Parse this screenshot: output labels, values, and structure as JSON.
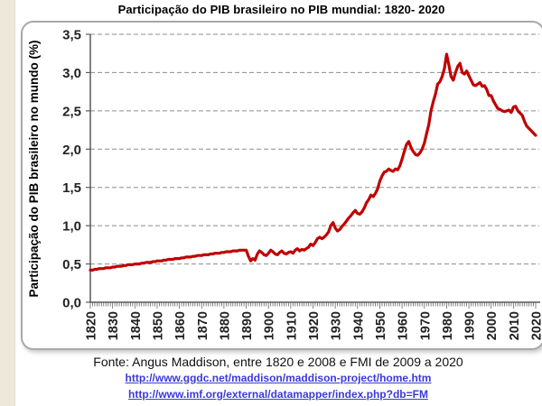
{
  "page": {
    "title": "Participação do PIB brasileiro no PIB mundial: 1820- 2020"
  },
  "footer": {
    "source": "Fonte: Angus Maddison, entre 1820 e 2008 e FMI de 2009 a 2020",
    "links": [
      {
        "text": "http://www.ggdc.net/maddison/maddison-project/home.htm"
      },
      {
        "text": "http://www.imf.org/external/datamapper/index.php?db=FM"
      }
    ]
  },
  "colors": {
    "line_red": "#C00000",
    "grid_gray": "#8C8C8C",
    "axis_gray": "#595959",
    "tick_label": "#222222",
    "link_blue": "#3A3AD6",
    "strip_beige": "#ECE9DB"
  },
  "chart_data": {
    "type": "line",
    "title": "Participação do PIB brasileiro no PIB mundial: 1820- 2020",
    "xlabel": "",
    "ylabel": "Participação do PIB brasileiro no mundo (%)",
    "ylim": [
      0,
      3.5
    ],
    "grid": "horizontal dashed",
    "legend": "none",
    "line_color": "#C00000",
    "y_tick_labels": [
      "0,0",
      "0,5",
      "1,0",
      "1,5",
      "2,0",
      "2,5",
      "3,0",
      "3,5"
    ],
    "x_tick_labels": [
      "1820",
      "1830",
      "1840",
      "1850",
      "1860",
      "1870",
      "1880",
      "1890",
      "1900",
      "1910",
      "1920",
      "1930",
      "1940",
      "1950",
      "1960",
      "1970",
      "1980",
      "1990",
      "2000",
      "2010",
      "2020"
    ],
    "x_start": 1820,
    "x_end": 2020,
    "series": [
      {
        "name": "Participação do PIB brasileiro no PIB mundial (%)",
        "start_year": 1820,
        "step_years": 1,
        "annual_values": [
          0.42,
          0.42,
          0.43,
          0.43,
          0.44,
          0.44,
          0.44,
          0.45,
          0.45,
          0.45,
          0.46,
          0.46,
          0.47,
          0.47,
          0.47,
          0.48,
          0.48,
          0.49,
          0.49,
          0.49,
          0.5,
          0.5,
          0.5,
          0.51,
          0.51,
          0.52,
          0.52,
          0.52,
          0.53,
          0.53,
          0.54,
          0.54,
          0.54,
          0.55,
          0.55,
          0.56,
          0.56,
          0.56,
          0.57,
          0.57,
          0.57,
          0.58,
          0.58,
          0.59,
          0.59,
          0.59,
          0.6,
          0.6,
          0.61,
          0.61,
          0.61,
          0.62,
          0.62,
          0.62,
          0.63,
          0.63,
          0.64,
          0.64,
          0.64,
          0.65,
          0.65,
          0.66,
          0.66,
          0.66,
          0.67,
          0.67,
          0.67,
          0.68,
          0.68,
          0.68,
          0.68,
          0.6,
          0.54,
          0.57,
          0.55,
          0.63,
          0.67,
          0.65,
          0.62,
          0.61,
          0.64,
          0.68,
          0.66,
          0.63,
          0.62,
          0.65,
          0.67,
          0.64,
          0.63,
          0.65,
          0.66,
          0.64,
          0.68,
          0.7,
          0.67,
          0.69,
          0.68,
          0.7,
          0.72,
          0.76,
          0.74,
          0.78,
          0.83,
          0.85,
          0.83,
          0.85,
          0.88,
          0.92,
          1.0,
          1.04,
          0.97,
          0.93,
          0.95,
          0.99,
          1.02,
          1.06,
          1.1,
          1.13,
          1.17,
          1.2,
          1.16,
          1.15,
          1.18,
          1.23,
          1.3,
          1.34,
          1.4,
          1.38,
          1.42,
          1.48,
          1.58,
          1.65,
          1.7,
          1.71,
          1.74,
          1.72,
          1.71,
          1.74,
          1.73,
          1.78,
          1.87,
          1.97,
          2.06,
          2.1,
          2.02,
          1.97,
          1.93,
          1.92,
          1.95,
          2.0,
          2.08,
          2.2,
          2.32,
          2.5,
          2.62,
          2.72,
          2.85,
          2.88,
          2.95,
          3.05,
          3.24,
          3.1,
          2.95,
          2.9,
          3.0,
          3.08,
          3.12,
          3.0,
          2.98,
          3.02,
          2.96,
          2.9,
          2.84,
          2.83,
          2.85,
          2.87,
          2.82,
          2.83,
          2.78,
          2.7,
          2.7,
          2.63,
          2.58,
          2.53,
          2.52,
          2.5,
          2.49,
          2.5,
          2.51,
          2.48,
          2.55,
          2.56,
          2.5,
          2.47,
          2.44,
          2.36,
          2.3,
          2.27,
          2.24,
          2.21,
          2.18
        ]
      }
    ]
  }
}
